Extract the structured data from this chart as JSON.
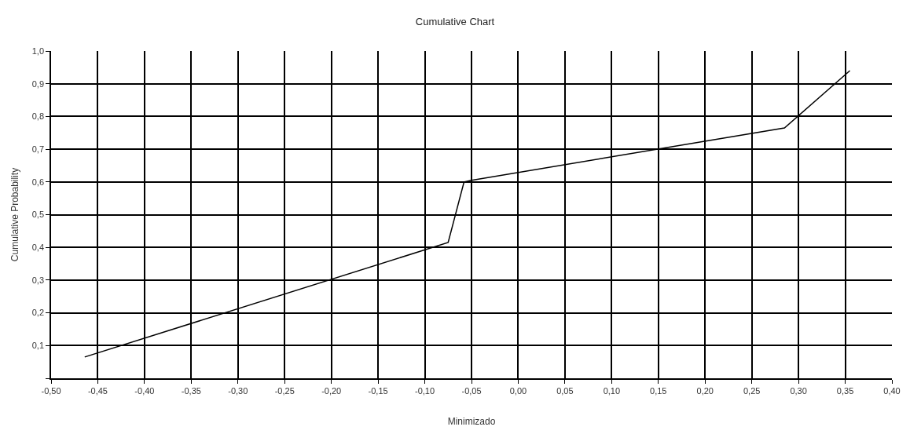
{
  "chart_data": {
    "type": "line",
    "title": "Cumulative Chart",
    "xlabel": "Minimizado",
    "ylabel": "Cumulative Probability",
    "x": [
      -0.464,
      -0.075,
      -0.058,
      -0.05,
      0.285,
      0.355
    ],
    "series": [
      {
        "color": "#000000",
        "values": [
          0.065,
          0.415,
          0.6,
          0.605,
          0.765,
          0.94
        ]
      }
    ],
    "xlim": [
      -0.5,
      0.4
    ],
    "ylim": [
      0,
      1.0
    ],
    "xticks": [
      {
        "value": -0.5,
        "label": "-0,50"
      },
      {
        "value": -0.45,
        "label": "-0,45"
      },
      {
        "value": -0.4,
        "label": "-0,40"
      },
      {
        "value": -0.35,
        "label": "-0,35"
      },
      {
        "value": -0.3,
        "label": "-0,30"
      },
      {
        "value": -0.25,
        "label": "-0,25"
      },
      {
        "value": -0.2,
        "label": "-0,20"
      },
      {
        "value": -0.15,
        "label": "-0,15"
      },
      {
        "value": -0.1,
        "label": "-0,10"
      },
      {
        "value": -0.05,
        "label": "-0,05"
      },
      {
        "value": 0,
        "label": "0,00"
      },
      {
        "value": 0.05,
        "label": "0,05"
      },
      {
        "value": 0.1,
        "label": "0,10"
      },
      {
        "value": 0.15,
        "label": "0,15"
      },
      {
        "value": 0.2,
        "label": "0,20"
      },
      {
        "value": 0.25,
        "label": "0,25"
      },
      {
        "value": 0.3,
        "label": "0,30"
      },
      {
        "value": 0.35,
        "label": "0,35"
      },
      {
        "value": 0.4,
        "label": "0,40"
      }
    ],
    "yticks": [
      {
        "value": 0,
        "label": null
      },
      {
        "value": 0.1,
        "label": "0,1"
      },
      {
        "value": 0.2,
        "label": "0,2"
      },
      {
        "value": 0.3,
        "label": "0,3"
      },
      {
        "value": 0.4,
        "label": "0,4"
      },
      {
        "value": 0.5,
        "label": "0,5"
      },
      {
        "value": 0.6,
        "label": "0,6"
      },
      {
        "value": 0.7,
        "label": "0,7"
      },
      {
        "value": 0.8,
        "label": "0,8"
      },
      {
        "value": 0.9,
        "label": "0,9"
      },
      {
        "value": 1.0,
        "label": "1,0"
      }
    ],
    "grid": true,
    "marker": "none",
    "line_style": "solid"
  }
}
